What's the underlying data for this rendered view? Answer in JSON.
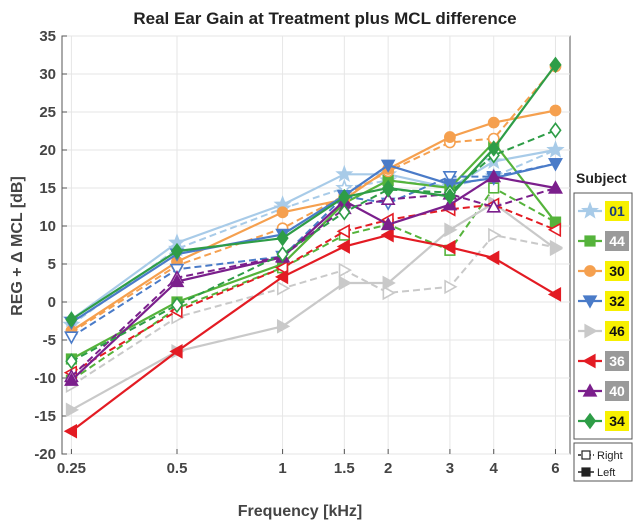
{
  "chart_data": {
    "type": "line",
    "title": "Real Ear Gain at Treatment plus MCL difference",
    "xlabel": "Frequency [kHz]",
    "ylabel": "REG + Δ MCL [dB]",
    "xscale": "log",
    "x": [
      0.25,
      0.5,
      1,
      1.5,
      2,
      3,
      4,
      6
    ],
    "x_tick_labels": [
      "0.25",
      "0.5",
      "1",
      "1.5",
      "2",
      "3",
      "4",
      "6"
    ],
    "ylim": [
      -20,
      35
    ],
    "y_ticks": [
      -20,
      -15,
      -10,
      -5,
      0,
      5,
      10,
      15,
      20,
      25,
      30,
      35
    ],
    "legend_title": "Subject",
    "legend_placement": "right",
    "side_legend": {
      "open_label": "Right",
      "filled_label": "Left"
    },
    "series": [
      {
        "name": "01",
        "color": "#a8cbe8",
        "marker": "star",
        "label_bg": "#f7f000",
        "label_color": "#1a3d7a",
        "left": [
          -2.3,
          7.8,
          12.8,
          16.8,
          16.8,
          15.0,
          18.5,
          20.0
        ],
        "right": [
          -3.0,
          7.0,
          12.3,
          15.0,
          16.0,
          15.2,
          16.5,
          20.0
        ]
      },
      {
        "name": "44",
        "color": "#55b33b",
        "marker": "square",
        "label_bg": "#9a9a9a",
        "label_color": "#ffffff",
        "left": [
          -7.5,
          0.0,
          5.0,
          13.0,
          16.0,
          15.0,
          21.0,
          10.5
        ],
        "right": [
          -10.3,
          -0.8,
          4.5,
          8.8,
          10.2,
          6.8,
          15.0,
          10.5
        ]
      },
      {
        "name": "30",
        "color": "#f5a04f",
        "marker": "circle",
        "label_bg": "#f7f000",
        "label_color": "#111111",
        "left": [
          -3.8,
          5.3,
          11.8,
          13.5,
          17.5,
          21.7,
          23.6,
          25.2
        ],
        "right": [
          -4.0,
          4.8,
          9.7,
          14.0,
          17.2,
          21.0,
          21.5,
          31.0
        ]
      },
      {
        "name": "32",
        "color": "#4a7bc8",
        "marker": "triangle-down",
        "label_bg": "#f7f000",
        "label_color": "#111111",
        "left": [
          -2.7,
          6.3,
          8.9,
          14.0,
          18.0,
          15.5,
          16.3,
          18.2
        ],
        "right": [
          -4.6,
          4.3,
          6.0,
          13.9,
          13.0,
          16.5,
          16.5,
          18.2
        ]
      },
      {
        "name": "46",
        "color": "#c9c9c9",
        "marker": "triangle-right",
        "label_bg": "#f7f000",
        "label_color": "#111111",
        "left": [
          -14.2,
          -6.5,
          -3.2,
          2.5,
          2.5,
          9.5,
          13.0,
          7.0
        ],
        "right": [
          -11.0,
          -2.0,
          1.8,
          4.2,
          1.2,
          2.0,
          8.8,
          7.2
        ]
      },
      {
        "name": "36",
        "color": "#e31b23",
        "marker": "triangle-left",
        "label_bg": "#9a9a9a",
        "label_color": "#ffffff",
        "left": [
          -17.0,
          -6.5,
          3.3,
          7.3,
          8.8,
          7.2,
          5.8,
          1.0
        ],
        "right": [
          -9.3,
          -1.2,
          4.5,
          9.3,
          10.8,
          12.2,
          12.8,
          9.5
        ]
      },
      {
        "name": "40",
        "color": "#7b1f8c",
        "marker": "triangle-up",
        "label_bg": "#9a9a9a",
        "label_color": "#ffffff",
        "left": [
          -10.3,
          2.7,
          5.9,
          13.3,
          10.2,
          12.8,
          16.5,
          15.0
        ],
        "right": [
          -9.8,
          3.2,
          6.0,
          12.3,
          13.5,
          14.2,
          12.5,
          15.0
        ]
      },
      {
        "name": "34",
        "color": "#2e9d47",
        "marker": "diamond",
        "label_bg": "#f7f000",
        "label_color": "#111111",
        "left": [
          -2.3,
          6.7,
          8.4,
          13.8,
          15.0,
          13.9,
          20.2,
          31.2
        ],
        "right": [
          -7.8,
          -0.4,
          6.3,
          11.8,
          14.8,
          14.4,
          19.3,
          22.6
        ]
      }
    ]
  }
}
